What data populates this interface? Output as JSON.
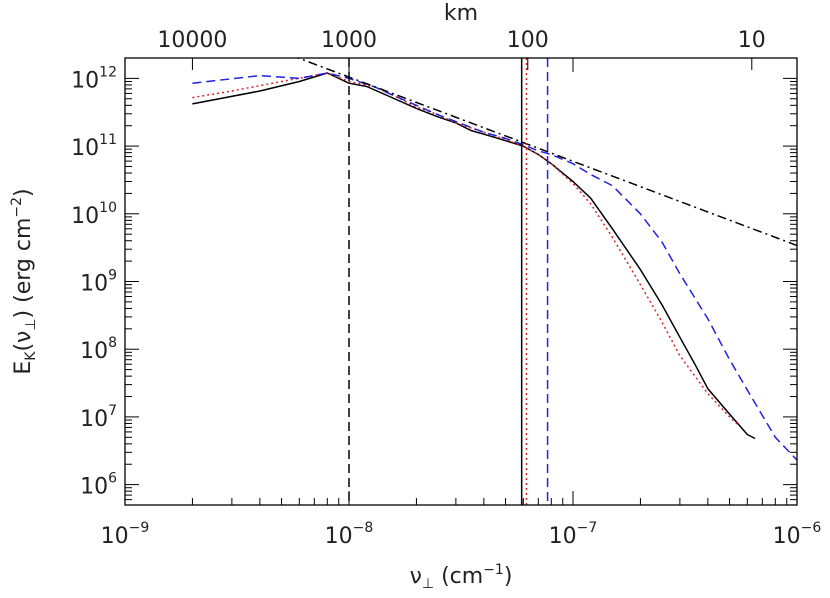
{
  "chart_data": {
    "type": "line",
    "xscale": "log",
    "yscale": "log",
    "xlim": [
      1e-09,
      1e-06
    ],
    "ylim": [
      500000.0,
      2000000000000.0
    ],
    "grid": false,
    "x_axis_label": {
      "main": "ν",
      "subscript": "⊥",
      "unit": " (cm",
      "unit_sup": "−1",
      "unit_close": ")"
    },
    "y_axis_label": {
      "main": "E",
      "subscript": "K",
      "paren_open": "(ν",
      "paren_sub": "⊥",
      "paren_close": ")",
      "unit": " (erg cm",
      "unit_sup": "−2",
      "unit_close": ")"
    },
    "x_ticks": [
      {
        "value": 1e-09,
        "base": "10",
        "exp": "−9"
      },
      {
        "value": 1e-08,
        "base": "10",
        "exp": "−8"
      },
      {
        "value": 1e-07,
        "base": "10",
        "exp": "−7"
      },
      {
        "value": 1e-06,
        "base": "10",
        "exp": "−6"
      }
    ],
    "y_ticks": [
      {
        "value": 1000000.0,
        "base": "10",
        "exp": "6"
      },
      {
        "value": 10000000.0,
        "base": "10",
        "exp": "7"
      },
      {
        "value": 100000000.0,
        "base": "10",
        "exp": "8"
      },
      {
        "value": 1000000000.0,
        "base": "10",
        "exp": "9"
      },
      {
        "value": 10000000000.0,
        "base": "10",
        "exp": "10"
      },
      {
        "value": 100000000000.0,
        "base": "10",
        "exp": "11"
      },
      {
        "value": 1000000000000.0,
        "base": "10",
        "exp": "12"
      }
    ],
    "top_axis": {
      "label": "km",
      "ticks": [
        {
          "x": 2e-09,
          "label": "10000"
        },
        {
          "x": 1e-08,
          "label": "1000"
        },
        {
          "x": 6.283e-08,
          "label": "100"
        },
        {
          "x": 6.283e-07,
          "label": "10"
        }
      ]
    },
    "series": [
      {
        "color": "#000000",
        "dash": "solid",
        "x": [
          2e-09,
          4e-09,
          6e-09,
          8e-09,
          1e-08,
          1.2e-08,
          1.5e-08,
          2e-08,
          2.5e-08,
          3e-08,
          3.5e-08,
          4e-08,
          5e-08,
          6e-08,
          7e-08,
          8e-08,
          1e-07,
          1.2e-07,
          1.5e-07,
          2e-07,
          2.5e-07,
          3e-07,
          3.5e-07,
          4e-07,
          5e-07,
          6e-07,
          6.5e-07
        ],
        "y": [
          420000000000.0,
          650000000000.0,
          900000000000.0,
          1200000000000.0,
          850000000000.0,
          760000000000.0,
          550000000000.0,
          360000000000.0,
          270000000000.0,
          220000000000.0,
          170000000000.0,
          150000000000.0,
          120000000000.0,
          100000000000.0,
          75000000000.0,
          55000000000.0,
          30000000000.0,
          17000000000.0,
          6000000000.0,
          1500000000.0,
          450000000.0,
          150000000.0,
          60000000.0,
          26000000.0,
          11000000.0,
          5500000.0,
          4800000.0
        ]
      },
      {
        "color": "#dd2222",
        "dash": "dotted",
        "x": [
          2e-09,
          3e-09,
          5e-09,
          8e-09,
          1e-08,
          1.3e-08,
          1.6e-08,
          2e-08,
          2.5e-08,
          3e-08,
          4e-08,
          5e-08,
          6e-08,
          7e-08,
          8e-08,
          1e-07,
          1.2e-07,
          1.5e-07,
          2e-07,
          2.5e-07,
          3e-07,
          4e-07,
          5e-07,
          5.5e-07
        ],
        "y": [
          520000000000.0,
          650000000000.0,
          900000000000.0,
          1200000000000.0,
          900000000000.0,
          750000000000.0,
          550000000000.0,
          380000000000.0,
          290000000000.0,
          220000000000.0,
          160000000000.0,
          125000000000.0,
          100000000000.0,
          75000000000.0,
          55000000000.0,
          28000000000.0,
          14000000000.0,
          4500000000.0,
          900000000.0,
          250000000.0,
          80000000.0,
          22000000.0,
          10000000.0,
          7500000.0
        ]
      },
      {
        "color": "#2222dd",
        "dash": "dashed",
        "x": [
          2e-09,
          4e-09,
          6e-09,
          8e-09,
          1e-08,
          1.3e-08,
          1.6e-08,
          2e-08,
          2.5e-08,
          3e-08,
          4e-08,
          5e-08,
          6e-08,
          7e-08,
          8e-08,
          1e-07,
          1.2e-07,
          1.5e-07,
          2e-07,
          2.5e-07,
          3e-07,
          4e-07,
          5e-07,
          6e-07,
          8e-07,
          1e-06
        ],
        "y": [
          850000000000.0,
          1100000000000.0,
          1000000000000.0,
          1200000000000.0,
          1000000000000.0,
          750000000000.0,
          550000000000.0,
          400000000000.0,
          290000000000.0,
          230000000000.0,
          160000000000.0,
          130000000000.0,
          105000000000.0,
          85000000000.0,
          75000000000.0,
          55000000000.0,
          38000000000.0,
          26000000000.0,
          10000000000.0,
          3800000000.0,
          1300000000.0,
          280000000.0,
          70000000.0,
          25000000.0,
          5000000.0,
          2300000.0
        ]
      },
      {
        "color": "#000000",
        "dash": "dashdot",
        "x": [
          5.5e-09,
          1e-06
        ],
        "y": [
          2200000000000.0,
          3400000000.0
        ]
      }
    ],
    "vertical_lines": [
      {
        "x": 1e-08,
        "color": "#000000",
        "dash": "dashed"
      },
      {
        "x": 5.9e-08,
        "color": "#000000",
        "dash": "solid"
      },
      {
        "x": 6.2e-08,
        "color": "#dd2222",
        "dash": "dotted"
      },
      {
        "x": 7.7e-08,
        "color": "#2222dd",
        "dash": "dashed"
      }
    ]
  }
}
